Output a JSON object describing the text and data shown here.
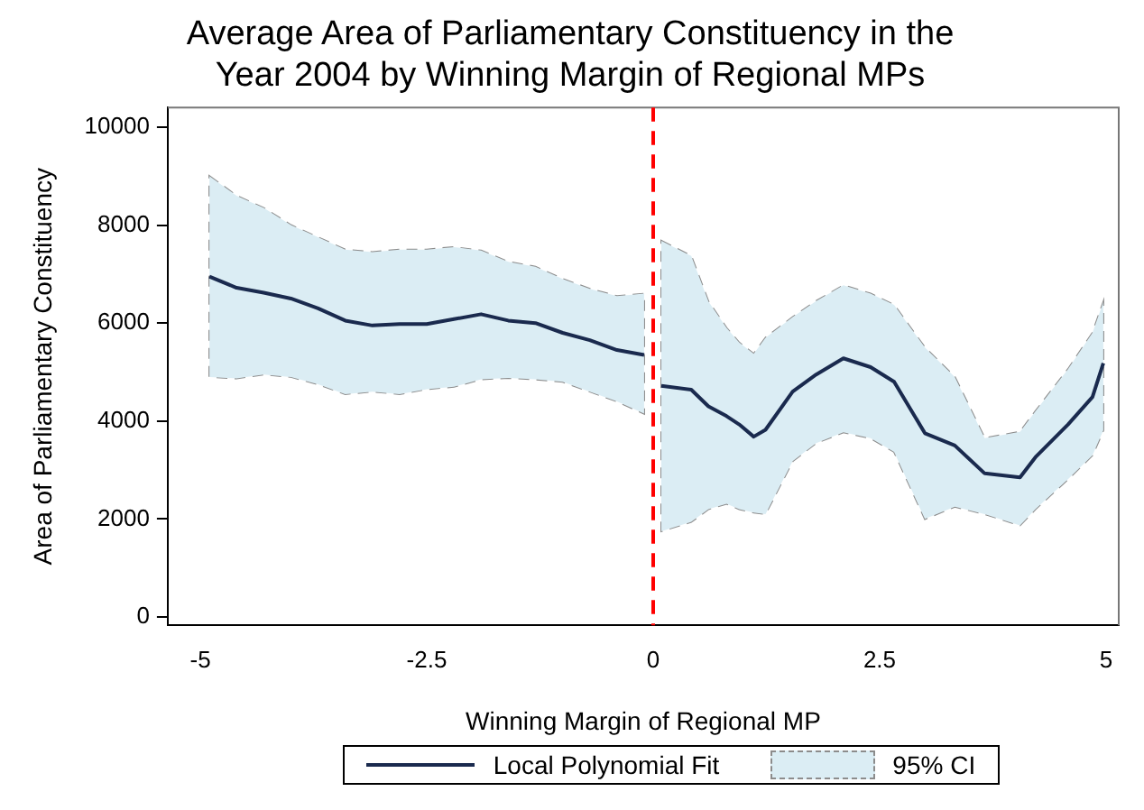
{
  "chart_data": {
    "type": "line",
    "title": "Average Area of Parliamentary Constituency in the Year 2004 by Winning Margin of Regional MPs",
    "xlabel": "Winning Margin of Regional MP",
    "ylabel": "Area of Parliamentary Constituency",
    "annotations": [
      "95% CI"
    ],
    "xlim": [
      -5.36,
      5.14
    ],
    "xticks": [
      -5,
      -2.5,
      0,
      2.5,
      5
    ],
    "ylim": [
      -170,
      10400
    ],
    "yticks": [
      0,
      2000,
      4000,
      6000,
      8000,
      10000
    ],
    "grid": false,
    "legend": "bottom",
    "marker": "none",
    "line_style": "solid",
    "ref_lines": [
      {
        "axis": "x",
        "value": 0,
        "color": "#ff0000",
        "line_style": "dashed"
      }
    ],
    "series": [
      {
        "name": "Local Polynomial Fit",
        "color": "#1a2a4e",
        "x": [
          -4.9,
          -4.6,
          -4.3,
          -4.0,
          -3.7,
          -3.4,
          -3.1,
          -2.8,
          -2.5,
          -2.2,
          -1.9,
          -1.6,
          -1.3,
          -1.0,
          -0.7,
          -0.4,
          -0.1,
          0,
          0.09,
          0.42,
          0.61,
          0.81,
          0.95,
          1.11,
          1.24,
          1.54,
          1.8,
          2.1,
          2.4,
          2.66,
          3.0,
          3.33,
          3.66,
          4.05,
          4.22,
          4.58,
          4.85,
          4.97
        ],
        "values": [
          6950,
          6720,
          6620,
          6500,
          6300,
          6050,
          5950,
          5980,
          5980,
          6080,
          6180,
          6050,
          6000,
          5800,
          5650,
          5450,
          5350,
          null,
          4720,
          4640,
          4300,
          4100,
          3930,
          3680,
          3820,
          4600,
          4950,
          5280,
          5100,
          4800,
          3750,
          3500,
          2930,
          2850,
          3260,
          3930,
          4490,
          5180
        ],
        "upper": [
          9000,
          8600,
          8350,
          8000,
          7750,
          7500,
          7450,
          7500,
          7500,
          7550,
          7480,
          7250,
          7150,
          6900,
          6700,
          6550,
          6600,
          null,
          7680,
          7370,
          6440,
          5900,
          5600,
          5370,
          5700,
          6120,
          6450,
          6770,
          6600,
          6370,
          5500,
          4900,
          3650,
          3780,
          4200,
          5060,
          5800,
          6430
        ],
        "lower": [
          4900,
          4870,
          4950,
          4900,
          4750,
          4550,
          4600,
          4550,
          4650,
          4700,
          4850,
          4880,
          4850,
          4800,
          4600,
          4400,
          4150,
          null,
          1750,
          1940,
          2200,
          2310,
          2200,
          2130,
          2100,
          3180,
          3550,
          3770,
          3650,
          3370,
          2000,
          2250,
          2100,
          1870,
          2200,
          2810,
          3300,
          3810
        ]
      }
    ]
  }
}
